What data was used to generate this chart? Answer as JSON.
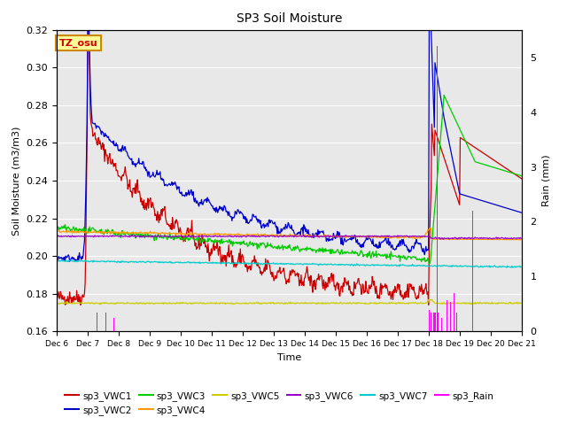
{
  "title": "SP3 Soil Moisture",
  "xlabel": "Time",
  "ylabel_left": "Soil Moisture (m3/m3)",
  "ylabel_right": "Rain (mm)",
  "ylim_left": [
    0.16,
    0.32
  ],
  "ylim_right": [
    0.0,
    5.5
  ],
  "background_color": "#e8e8e8",
  "label_box_color": "#ffff99",
  "label_box_text": "TZ_osu",
  "label_box_text_color": "#cc0000",
  "xtick_labels": [
    "Dec 6",
    "Dec 7",
    "Dec 8",
    "Dec 9",
    "Dec 10",
    "Dec 11",
    "Dec 12",
    "Dec 13",
    "Dec 14",
    "Dec 15",
    "Dec 16",
    "Dec 17",
    "Dec 18",
    "Dec 19",
    "Dec 20",
    "Dec 21"
  ],
  "series": {
    "VWC1_color": "#cc0000",
    "VWC2_color": "#0000cc",
    "VWC3_color": "#00cc00",
    "VWC4_color": "#ff9900",
    "VWC5_color": "#cccc00",
    "VWC6_color": "#9900cc",
    "VWC7_color": "#00cccc",
    "Rain_color": "#ff00ff"
  },
  "legend_entries": [
    {
      "label": "sp3_VWC1",
      "color": "#cc0000"
    },
    {
      "label": "sp3_VWC2",
      "color": "#0000cc"
    },
    {
      "label": "sp3_VWC3",
      "color": "#00cc00"
    },
    {
      "label": "sp3_VWC4",
      "color": "#ff9900"
    },
    {
      "label": "sp3_VWC5",
      "color": "#cccc00"
    },
    {
      "label": "sp3_VWC6",
      "color": "#9900cc"
    },
    {
      "label": "sp3_VWC7",
      "color": "#00cccc"
    },
    {
      "label": "sp3_Rain",
      "color": "#ff00ff"
    }
  ]
}
